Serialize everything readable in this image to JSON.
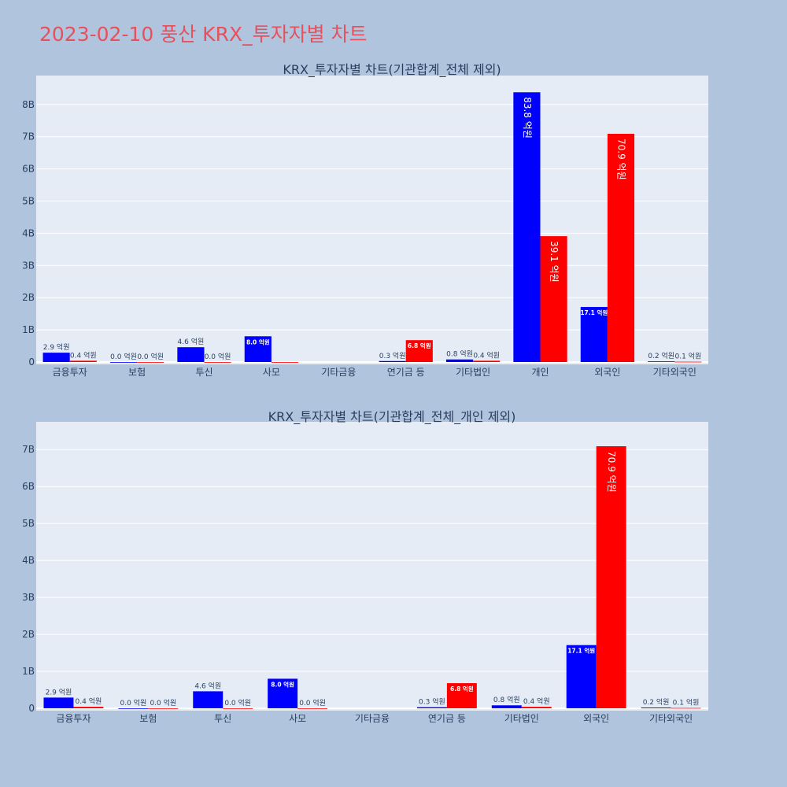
{
  "title": "2023-02-10 풍산 KRX_투자자별 차트",
  "colors": {
    "buy": "#0000ff",
    "sell": "#ff0000",
    "plot_bg": "#e5ecf6",
    "page_bg": "#b0c4de",
    "title": "#e8505b"
  },
  "chart_data": [
    {
      "type": "bar",
      "title": "KRX_투자자별 차트(기관합계_전체 제외)",
      "categories": [
        "금융투자",
        "보험",
        "투신",
        "사모",
        "기타금융",
        "연기금 등",
        "기타법인",
        "개인",
        "외국인",
        "기타외국인"
      ],
      "series": [
        {
          "values": [
            290000000,
            0,
            460000000,
            800000000,
            null,
            30000000,
            80000000,
            8380000000,
            1710000000,
            20000000
          ],
          "labels": [
            "2.9 억원",
            "0.0 억원",
            "4.6 억원",
            "8.0 억원",
            "",
            "0.3 억원",
            "0.8 억원",
            "83.8 억원",
            "17.1 억원",
            "0.2 억원"
          ]
        },
        {
          "values": [
            40000000,
            0,
            0,
            0,
            null,
            680000000,
            40000000,
            3910000000,
            7090000000,
            10000000
          ],
          "labels": [
            "0.4 억원",
            "0.0 억원",
            "0.0 억원",
            "",
            "",
            "6.8 억원",
            "0.4 억원",
            "39.1 억원",
            "70.9 억원",
            "0.1 억원"
          ]
        }
      ],
      "ylim": [
        0,
        8900000000
      ],
      "yticks": [
        0,
        1000000000,
        2000000000,
        3000000000,
        4000000000,
        5000000000,
        6000000000,
        7000000000,
        8000000000
      ],
      "ytick_labels": [
        "0",
        "1B",
        "2B",
        "3B",
        "4B",
        "5B",
        "6B",
        "7B",
        "8B"
      ],
      "grid": true
    },
    {
      "type": "bar",
      "title": "KRX_투자자별 차트(기관합계_전체_개인 제외)",
      "categories": [
        "금융투자",
        "보험",
        "투신",
        "사모",
        "기타금융",
        "연기금 등",
        "기타법인",
        "외국인",
        "기타외국인"
      ],
      "series": [
        {
          "values": [
            290000000,
            0,
            460000000,
            800000000,
            null,
            30000000,
            80000000,
            1710000000,
            20000000
          ],
          "labels": [
            "2.9 억원",
            "0.0 억원",
            "4.6 억원",
            "8.0 억원",
            "",
            "0.3 억원",
            "0.8 억원",
            "17.1 억원",
            "0.2 억원"
          ]
        },
        {
          "values": [
            40000000,
            0,
            0,
            0,
            null,
            680000000,
            40000000,
            7090000000,
            10000000
          ],
          "labels": [
            "0.4 억원",
            "0.0 억원",
            "0.0 억원",
            "0.0 억원",
            "",
            "6.8 억원",
            "0.4 억원",
            "70.9 억원",
            "0.1 억원"
          ]
        }
      ],
      "ylim": [
        0,
        7750000000
      ],
      "yticks": [
        0,
        1000000000,
        2000000000,
        3000000000,
        4000000000,
        5000000000,
        6000000000,
        7000000000
      ],
      "ytick_labels": [
        "0",
        "1B",
        "2B",
        "3B",
        "4B",
        "5B",
        "6B",
        "7B"
      ],
      "grid": true
    }
  ]
}
